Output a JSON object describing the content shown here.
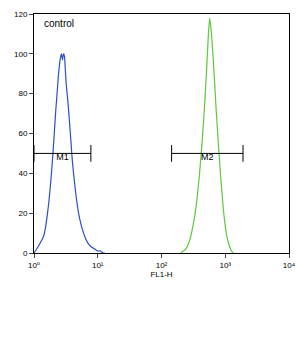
{
  "chart_data": {
    "type": "line",
    "log": "x",
    "x_label": "FL1-H",
    "annotations": [
      "control"
    ],
    "xlim": [
      1,
      10000
    ],
    "xticks": [
      {
        "value": 1,
        "label": "10⁰"
      },
      {
        "value": 10,
        "label": "10¹"
      },
      {
        "value": 100,
        "label": "10²"
      },
      {
        "value": 1000,
        "label": "10³"
      },
      {
        "value": 10000,
        "label": "10⁴"
      }
    ],
    "ylim": [
      0,
      120
    ],
    "yticks": [
      0,
      20,
      40,
      60,
      80,
      100,
      120
    ],
    "grid": false,
    "series": [
      {
        "color": "#2b4fc7",
        "x": [
          1.0,
          1.1,
          1.2,
          1.3,
          1.4,
          1.5,
          1.6,
          1.7,
          1.8,
          1.9,
          2.0,
          2.1,
          2.2,
          2.3,
          2.4,
          2.5,
          2.6,
          2.7,
          2.8,
          2.9,
          3.0,
          3.1,
          3.2,
          3.4,
          3.6,
          3.8,
          4.0,
          4.3,
          4.6,
          5.0,
          5.5,
          6.0,
          6.5,
          7.0,
          8.0,
          9.0,
          10,
          11,
          12,
          13
        ],
        "values": [
          0,
          2,
          4,
          6,
          8,
          12,
          18,
          25,
          33,
          42,
          52,
          62,
          72,
          80,
          88,
          94,
          98,
          100,
          97,
          100,
          99,
          92,
          85,
          76,
          66,
          56,
          46,
          36,
          28,
          20,
          14,
          10,
          7,
          5,
          3,
          2,
          1,
          1,
          0,
          0
        ]
      },
      {
        "color": "#5cc83c",
        "x": [
          200,
          220,
          240,
          260,
          280,
          300,
          330,
          360,
          390,
          420,
          450,
          480,
          510,
          540,
          570,
          600,
          640,
          680,
          720,
          780,
          840,
          900,
          970,
          1050,
          1150,
          1250,
          1350
        ],
        "values": [
          0,
          1,
          2,
          4,
          7,
          11,
          18,
          27,
          38,
          50,
          63,
          77,
          92,
          108,
          118,
          112,
          100,
          86,
          72,
          55,
          40,
          28,
          17,
          9,
          4,
          1,
          0
        ]
      }
    ],
    "gates": [
      {
        "label": "M1",
        "range": [
          1,
          7.8
        ],
        "y": 50
      },
      {
        "label": "M2",
        "range": [
          144,
          1900
        ],
        "y": 50
      }
    ]
  }
}
